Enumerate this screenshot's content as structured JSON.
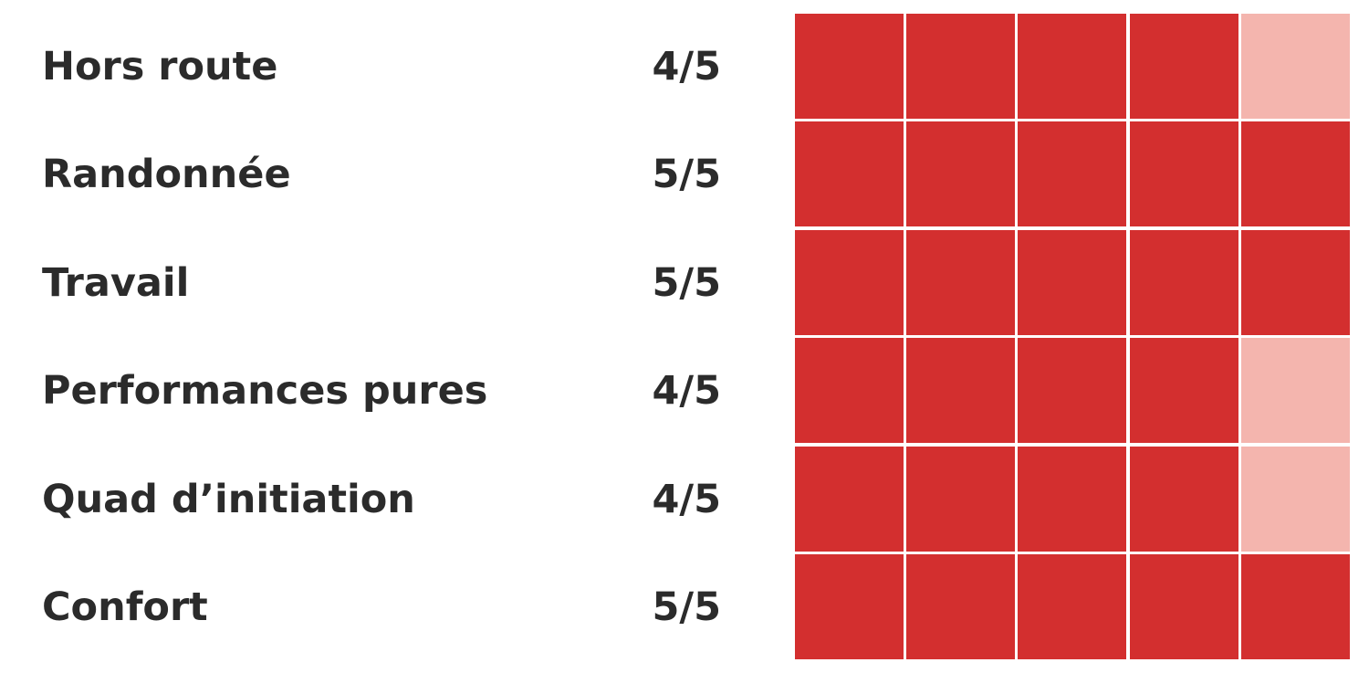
{
  "colors": {
    "filled": "#d32f2f",
    "empty": "#f4b5ae"
  },
  "chart_data": {
    "type": "table",
    "max": 5,
    "categories": [
      "Hors route",
      "Randonnée",
      "Travail",
      "Performances pures",
      "Quad d’initiation",
      "Confort"
    ],
    "values": [
      4,
      5,
      5,
      4,
      4,
      5
    ],
    "score_labels": [
      "4/5",
      "5/5",
      "5/5",
      "4/5",
      "4/5",
      "5/5"
    ]
  }
}
